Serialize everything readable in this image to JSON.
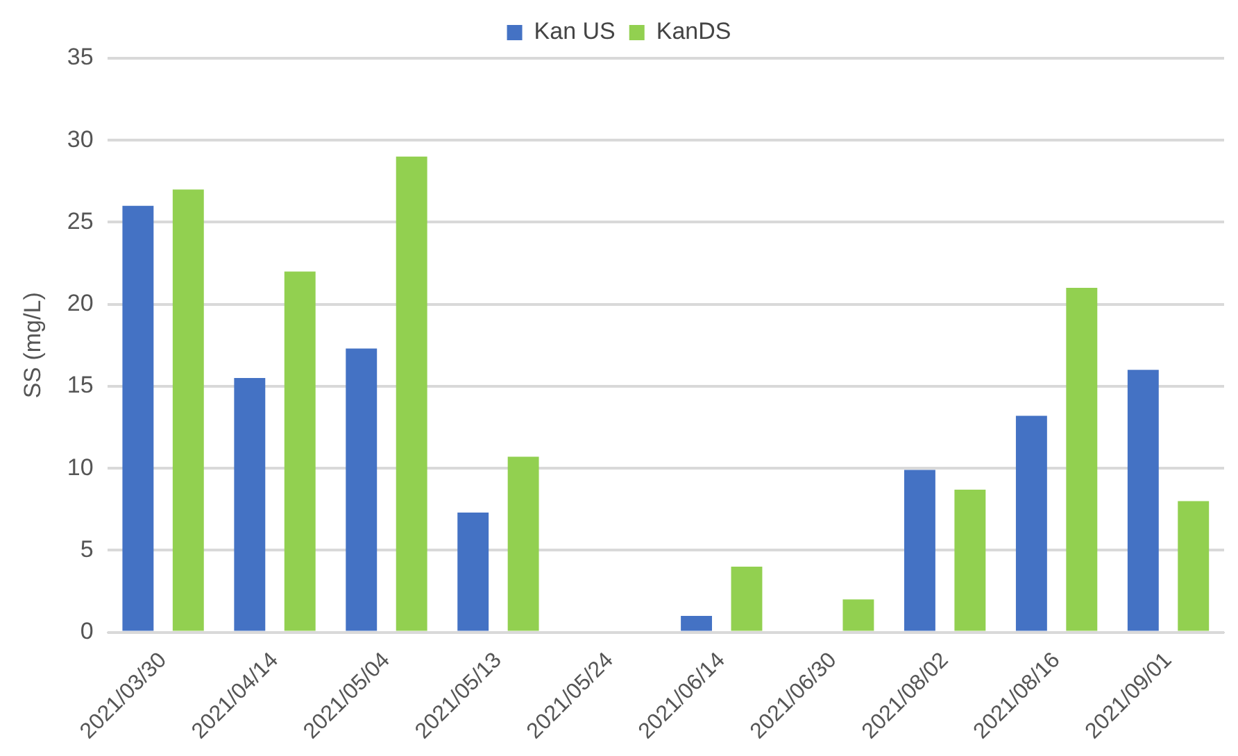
{
  "chart_data": {
    "type": "bar",
    "ylabel": "SS (mg/L)",
    "categories": [
      "2021/03/30",
      "2021/04/14",
      "2021/05/04",
      "2021/05/13",
      "2021/05/24",
      "2021/06/14",
      "2021/06/30",
      "2021/08/02",
      "2021/08/16",
      "2021/09/01"
    ],
    "series": [
      {
        "name": "Kan US",
        "color": "#4472c4",
        "values": [
          26,
          15.5,
          17.3,
          7.3,
          null,
          1,
          null,
          9.9,
          13.2,
          16
        ]
      },
      {
        "name": "KanDS",
        "color": "#92d050",
        "values": [
          27,
          22,
          29,
          10.7,
          null,
          4,
          2,
          8.7,
          21,
          8
        ]
      }
    ],
    "ylim": [
      0,
      35
    ],
    "yticks": [
      0,
      5,
      10,
      15,
      20,
      25,
      30,
      35
    ],
    "grid": "y",
    "legend": "top"
  }
}
